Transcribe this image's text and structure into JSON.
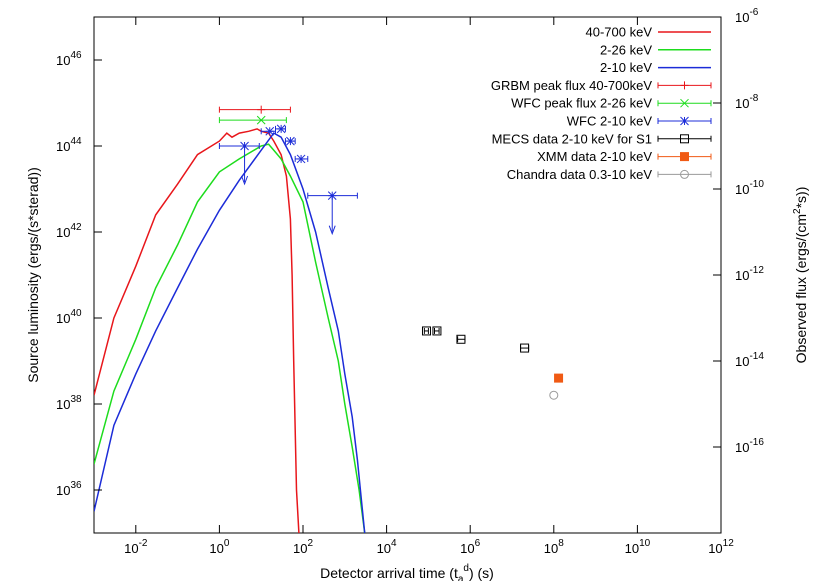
{
  "chart_data": {
    "type": "line",
    "xlabel": "Detector arrival time (t",
    "xlabel_sub": "a",
    "xlabel_sup": "d",
    "xlabel_tail": ") (s)",
    "ylabel": "Source luminosity (ergs/(s*sterad))",
    "y2label": "Observed flux (ergs/(cm",
    "y2label_sup": "2",
    "y2label_tail": "*s))",
    "xscale": "log",
    "yscale": "log",
    "xlim": [
      0.001,
      1000000000000.0
    ],
    "ylim": [
      1e+35,
      1e+47
    ],
    "y2lim": [
      1e-18,
      1e-06
    ],
    "grid": false,
    "legend_position": "top-right",
    "x_ticks": [
      {
        "exp": 2,
        "sign": "-",
        "label": "10",
        "value": 0.01
      },
      {
        "exp": 0,
        "sign": "",
        "label": "10",
        "value": 1
      },
      {
        "exp": 2,
        "sign": "",
        "label": "10",
        "value": 100
      },
      {
        "exp": 4,
        "sign": "",
        "label": "10",
        "value": 10000
      },
      {
        "exp": 6,
        "sign": "",
        "label": "10",
        "value": 1000000
      },
      {
        "exp": 8,
        "sign": "",
        "label": "10",
        "value": 100000000
      },
      {
        "exp": 10,
        "sign": "",
        "label": "10",
        "value": 10000000000
      },
      {
        "exp": 12,
        "sign": "",
        "label": "10",
        "value": 1000000000000
      }
    ],
    "y_ticks": [
      {
        "exp": 36,
        "label": "10",
        "value": 1e+36
      },
      {
        "exp": 38,
        "label": "10",
        "value": 1e+38
      },
      {
        "exp": 40,
        "label": "10",
        "value": 1e+40
      },
      {
        "exp": 42,
        "label": "10",
        "value": 1e+42
      },
      {
        "exp": 44,
        "label": "10",
        "value": 1e+44
      },
      {
        "exp": 46,
        "label": "10",
        "value": 1e+46
      }
    ],
    "y2_ticks": [
      {
        "exp": 16,
        "label": "10",
        "value": 1e-16
      },
      {
        "exp": 14,
        "label": "10",
        "value": 1e-14
      },
      {
        "exp": 12,
        "label": "10",
        "value": 1e-12
      },
      {
        "exp": 10,
        "label": "10",
        "value": 1e-10
      },
      {
        "exp": 8,
        "label": "10",
        "value": 1e-08
      },
      {
        "exp": 6,
        "label": "10",
        "value": 1e-06
      }
    ],
    "series": [
      {
        "name": "40-700 keV",
        "kind": "line",
        "color": "#e8161b",
        "x": [
          0.001,
          0.003,
          0.01,
          0.03,
          0.1,
          0.3,
          1,
          1.5,
          2,
          3,
          5,
          8,
          10,
          15,
          20,
          30,
          40,
          50,
          55,
          60,
          70,
          80
        ],
        "y": [
          1.6e+38,
          1e+40,
          1.6e+41,
          2.5e+42,
          1.3e+43,
          6.3e+43,
          1.3e+44,
          2e+44,
          1.6e+44,
          2e+44,
          2.2e+44,
          2.5e+44,
          2.2e+44,
          2e+44,
          1.3e+44,
          6.3e+43,
          2e+43,
          2e+42,
          1e+41,
          1e+39,
          1e+36,
          1e+35
        ]
      },
      {
        "name": "2-26 keV",
        "kind": "line",
        "color": "#1ddc1d",
        "x": [
          0.001,
          0.003,
          0.01,
          0.03,
          0.1,
          0.3,
          1,
          3,
          10,
          15,
          20,
          30,
          50,
          100,
          200,
          400,
          700,
          1000,
          1500,
          2200,
          3000
        ],
        "y": [
          4e+36,
          2e+38,
          3.2e+39,
          5e+40,
          5e+41,
          5e+42,
          2.5e+43,
          5e+43,
          1e+44,
          1.1e+44,
          8e+43,
          5e+43,
          2e+43,
          5e+42,
          2e+41,
          1e+40,
          1e+39,
          1e+38,
          1e+37,
          1e+36,
          1e+35
        ]
      },
      {
        "name": "2-10 keV",
        "kind": "line",
        "color": "#1c2cd8",
        "x": [
          0.001,
          0.003,
          0.01,
          0.03,
          0.1,
          0.3,
          1,
          3,
          10,
          20,
          30,
          50,
          100,
          200,
          400,
          700,
          1000,
          1500,
          2000,
          3000
        ],
        "y": [
          3.2e+35,
          3.2e+37,
          5e+38,
          5e+39,
          5e+40,
          4e+41,
          3.2e+42,
          1.6e+43,
          8e+43,
          2e+44,
          1.6e+44,
          6.3e+43,
          1e+43,
          1e+42,
          5e+40,
          5e+39,
          5e+38,
          5e+37,
          5e+36,
          1e+35
        ]
      },
      {
        "name": "GRBM peak flux 40-700keV",
        "kind": "errorbar",
        "color": "#e8161b",
        "marker": "plus",
        "points": [
          {
            "x": 10,
            "y": 7e+44,
            "xlo": 1,
            "xhi": 50
          }
        ]
      },
      {
        "name": "WFC peak flux 2-26 keV",
        "kind": "errorbar",
        "color": "#1ddc1d",
        "marker": "cross",
        "points": [
          {
            "x": 10,
            "y": 4e+44,
            "xlo": 1,
            "xhi": 40
          }
        ]
      },
      {
        "name": "WFC 2-10 keV",
        "kind": "errorbar",
        "color": "#1c2cd8",
        "marker": "star",
        "points": [
          {
            "x": 4,
            "y": 1e+44,
            "xlo": 1,
            "xhi": 9,
            "upper_limit": true
          },
          {
            "x": 16,
            "y": 2.2e+44,
            "xlo": 10,
            "xhi": 22
          },
          {
            "x": 30,
            "y": 2.5e+44,
            "xlo": 22,
            "xhi": 38
          },
          {
            "x": 50,
            "y": 1.3e+44,
            "xlo": 38,
            "xhi": 65
          },
          {
            "x": 90,
            "y": 5e+43,
            "xlo": 65,
            "xhi": 130
          },
          {
            "x": 500,
            "y": 7e+42,
            "xlo": 130,
            "xhi": 2000,
            "upper_limit": true
          }
        ]
      },
      {
        "name": "MECS data 2-10 keV for S1",
        "kind": "errorbar",
        "color": "#000000",
        "marker": "open-square",
        "points": [
          {
            "x": 90000,
            "y": 5e+39,
            "xlo": 80000,
            "xhi": 100000
          },
          {
            "x": 160000,
            "y": 5e+39,
            "xlo": 140000,
            "xhi": 180000
          },
          {
            "x": 600000,
            "y": 3.2e+39,
            "xlo": 500000,
            "xhi": 750000
          },
          {
            "x": 20000000,
            "y": 2e+39,
            "xlo": 16000000,
            "xhi": 25000000
          }
        ]
      },
      {
        "name": "XMM data 2-10 keV",
        "kind": "errorbar",
        "color": "#f05a14",
        "marker": "filled-square",
        "points": [
          {
            "x": 130000000,
            "y": 4e+38,
            "xlo": 130000000,
            "xhi": 130000000
          }
        ]
      },
      {
        "name": "Chandra data 0.3-10 keV",
        "kind": "errorbar",
        "color": "#9a9a9a",
        "marker": "open-circle",
        "points": [
          {
            "x": 100000000,
            "y": 1.6e+38,
            "xlo": 100000000,
            "xhi": 100000000
          }
        ]
      }
    ]
  }
}
